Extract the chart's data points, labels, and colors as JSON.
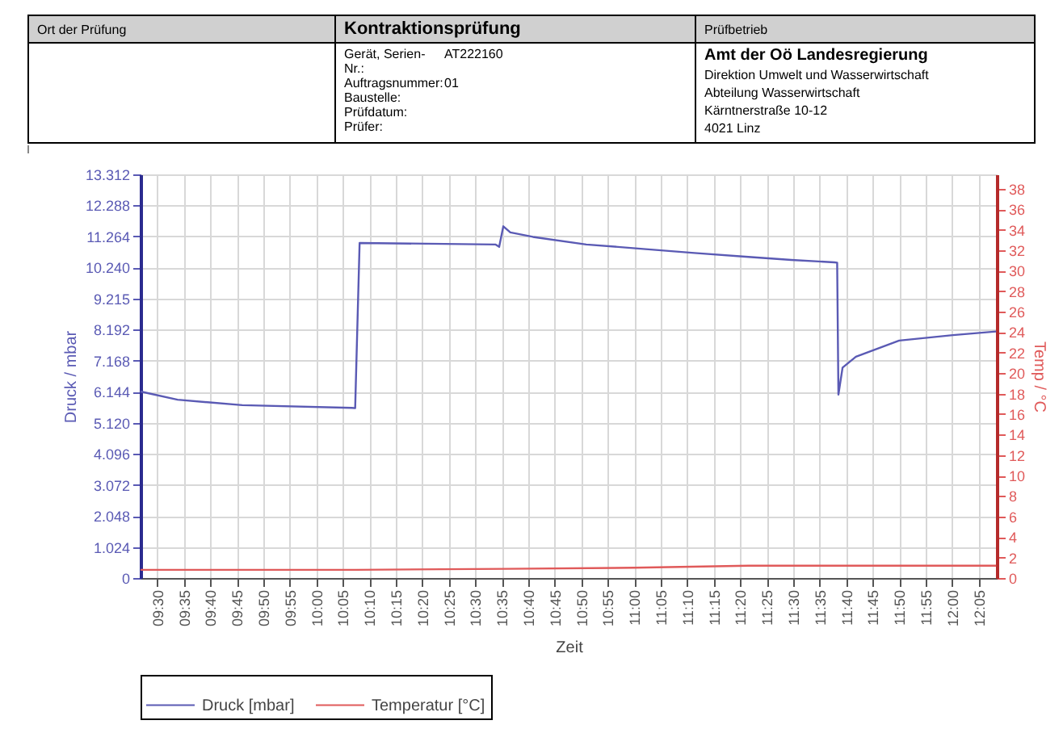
{
  "chart_data": {
    "type": "line",
    "title": "Kontraktionsprüfung",
    "xlabel": "Zeit",
    "ylabel": "Druck / mbar",
    "y2label": "Temp / °C",
    "annotations": [
      "Ort der Prüfung",
      "Prüfbetrieb",
      "Gerät, Serien-Nr.:",
      "AT222160",
      "Auftragsnummer:",
      "01",
      "Baustelle:",
      "Prüfdatum:",
      "Prüfer:",
      "Amt der Oö Landesregierung",
      "Direktion Umwelt und Wasserwirtschaft",
      "Abteilung Wasserwirtschaft",
      "Kärntnerstraße 10-12",
      "4021 Linz"
    ],
    "series": [
      {
        "name": "Druck [mbar]",
        "color": "#5a5ab4",
        "x": [
          9.447,
          9.5635,
          9.767,
          10.112,
          10.122,
          10.136,
          10.563,
          10.575,
          10.588,
          10.61,
          10.681,
          10.849,
          11.02,
          11.189,
          11.359,
          11.494,
          11.63,
          11.638,
          11.642,
          11.655,
          11.697,
          11.833,
          12.002,
          12.138
        ],
        "values": [
          6150,
          5880,
          5700,
          5610,
          5600,
          11050,
          11000,
          10920,
          11600,
          11400,
          11250,
          11000,
          10860,
          10720,
          10590,
          10490,
          10410,
          10400,
          6050,
          6940,
          7300,
          7830,
          8010,
          8130
        ]
      },
      {
        "name": "Temperatur [°C]",
        "color": "#e05a5a",
        "axis": "y2",
        "x": [
          9.447,
          9.767,
          10.122,
          10.6,
          11.0,
          11.36,
          11.8,
          12.138
        ],
        "values": [
          0.8,
          0.8,
          0.8,
          0.9,
          1.0,
          1.2,
          1.2,
          1.2
        ]
      }
    ],
    "xlim": [
      9.447,
      12.14
    ],
    "xticks": [
      {
        "value": 9.5,
        "label": "09:30"
      },
      {
        "value": 9.583333,
        "label": "09:35"
      },
      {
        "value": 9.666667,
        "label": "09:40"
      },
      {
        "value": 9.75,
        "label": "09:45"
      },
      {
        "value": 9.833333,
        "label": "09:50"
      },
      {
        "value": 9.916667,
        "label": "09:55"
      },
      {
        "value": 10,
        "label": "10:00"
      },
      {
        "value": 10.083333,
        "label": "10:05"
      },
      {
        "value": 10.166667,
        "label": "10:10"
      },
      {
        "value": 10.25,
        "label": "10:15"
      },
      {
        "value": 10.333333,
        "label": "10:20"
      },
      {
        "value": 10.416667,
        "label": "10:25"
      },
      {
        "value": 10.5,
        "label": "10:30"
      },
      {
        "value": 10.583333,
        "label": "10:35"
      },
      {
        "value": 10.666667,
        "label": "10:40"
      },
      {
        "value": 10.75,
        "label": "10:45"
      },
      {
        "value": 10.833333,
        "label": "10:50"
      },
      {
        "value": 10.916667,
        "label": "10:55"
      },
      {
        "value": 11,
        "label": "11:00"
      },
      {
        "value": 11.083333,
        "label": "11:05"
      },
      {
        "value": 11.166667,
        "label": "11:10"
      },
      {
        "value": 11.25,
        "label": "11:15"
      },
      {
        "value": 11.333333,
        "label": "11:20"
      },
      {
        "value": 11.416667,
        "label": "11:25"
      },
      {
        "value": 11.5,
        "label": "11:30"
      },
      {
        "value": 11.583333,
        "label": "11:35"
      },
      {
        "value": 11.666667,
        "label": "11:40"
      },
      {
        "value": 11.75,
        "label": "11:45"
      },
      {
        "value": 11.833333,
        "label": "11:50"
      },
      {
        "value": 11.916667,
        "label": "11:55"
      },
      {
        "value": 12,
        "label": "12:00"
      },
      {
        "value": 12.083333,
        "label": "12:05"
      }
    ],
    "ylim": [
      0,
      13312
    ],
    "yticks": [
      0,
      {
        "value": 1024,
        "label": "1.024"
      },
      {
        "value": 2048,
        "label": "2.048"
      },
      {
        "value": 3072,
        "label": "3.072"
      },
      {
        "value": 4096,
        "label": "4.096"
      },
      {
        "value": 5120,
        "label": "5.120"
      },
      {
        "value": 6144,
        "label": "6.144"
      },
      {
        "value": 7168,
        "label": "7.168"
      },
      {
        "value": 8192,
        "label": "8.192"
      },
      {
        "value": 9215,
        "label": "9.215"
      },
      {
        "value": 10240,
        "label": "10.240"
      },
      {
        "value": 11264,
        "label": "11.264"
      },
      {
        "value": 12288,
        "label": "12.288"
      },
      {
        "value": 13312,
        "label": "13.312"
      }
    ],
    "y2lim": [
      0,
      39.4
    ],
    "y2ticks": [
      0,
      2,
      4,
      6,
      8,
      10,
      12,
      14,
      16,
      18,
      20,
      22,
      24,
      26,
      28,
      30,
      32,
      34,
      36,
      38
    ],
    "grid": true,
    "legend": "bottom",
    "marker": "none",
    "line_style": "solid"
  }
}
